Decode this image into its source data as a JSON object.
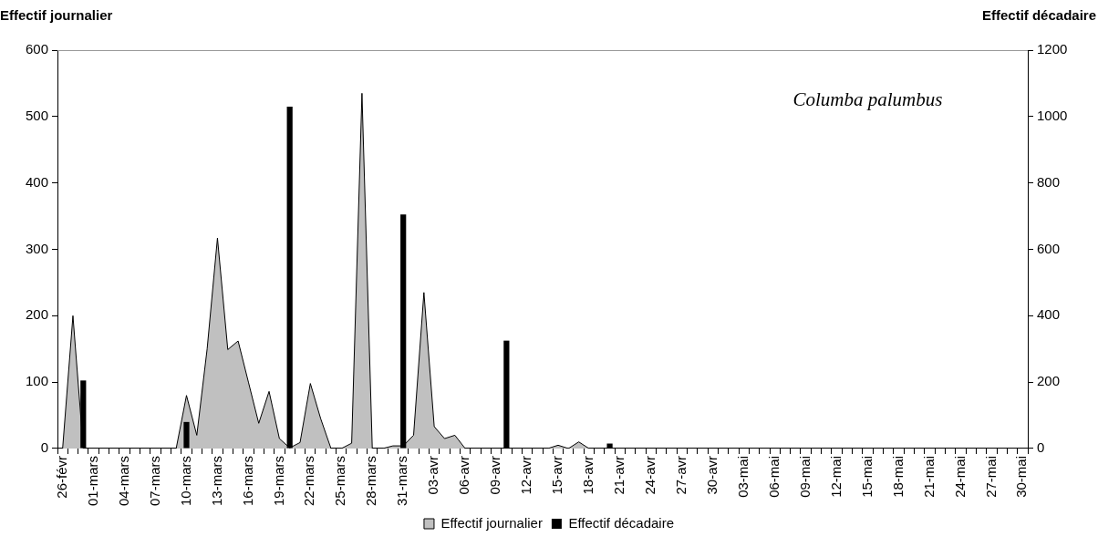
{
  "chart_data": {
    "type": "area",
    "ylabel": "Effectif journalier",
    "y2label": "Effectif décadaire",
    "annotations": [
      "Columba palumbus"
    ],
    "categories": [
      "26-févr",
      null,
      null,
      "01-mars",
      null,
      null,
      "04-mars",
      null,
      null,
      "07-mars",
      null,
      null,
      "10-mars",
      null,
      null,
      "13-mars",
      null,
      null,
      "16-mars",
      null,
      null,
      "19-mars",
      null,
      null,
      "22-mars",
      null,
      null,
      "25-mars",
      null,
      null,
      "28-mars",
      null,
      null,
      "31-mars",
      null,
      null,
      "03-avr",
      null,
      null,
      "06-avr",
      null,
      null,
      "09-avr",
      null,
      null,
      "12-avr",
      null,
      null,
      "15-avr",
      null,
      null,
      "18-avr",
      null,
      null,
      "21-avr",
      null,
      null,
      "24-avr",
      null,
      null,
      "27-avr",
      null,
      null,
      "30-avr",
      null,
      null,
      "03-mai",
      null,
      null,
      "06-mai",
      null,
      null,
      "09-mai",
      null,
      null,
      "12-mai",
      null,
      null,
      "15-mai",
      null,
      null,
      "18-mai",
      null,
      null,
      "21-mai",
      null,
      null,
      "24-mai",
      null,
      null,
      "27-mai",
      null,
      null,
      "30-mai"
    ],
    "series": [
      {
        "name": "Effectif journalier",
        "color": "#c0c0c0",
        "values": [
          0,
          200,
          0,
          0,
          0,
          0,
          0,
          0,
          0,
          0,
          0,
          0,
          80,
          20,
          150,
          317,
          149,
          162,
          100,
          38,
          86,
          15,
          1,
          9,
          98,
          45,
          0,
          0,
          8,
          535,
          0,
          0,
          4,
          4,
          20,
          235,
          33,
          15,
          20,
          0,
          0,
          0,
          0,
          0,
          0,
          0,
          0,
          0,
          5,
          0,
          10,
          0,
          0,
          0,
          0,
          0,
          0,
          0,
          0,
          0,
          0,
          0,
          0,
          0,
          0,
          0,
          0,
          0,
          0,
          0,
          0,
          0,
          0,
          0,
          0,
          0,
          0,
          0,
          0,
          0,
          0,
          0,
          0,
          0,
          0,
          0,
          0,
          0,
          0,
          0,
          0,
          0,
          0,
          0
        ]
      },
      {
        "name": "Effectif décadaire",
        "type": "bar",
        "axis": "y2",
        "color": "#000000",
        "values": [
          null,
          null,
          205,
          null,
          null,
          null,
          null,
          null,
          null,
          null,
          null,
          null,
          80,
          null,
          null,
          null,
          null,
          null,
          null,
          null,
          null,
          null,
          1030,
          null,
          null,
          null,
          null,
          null,
          null,
          null,
          null,
          null,
          null,
          705,
          null,
          null,
          null,
          null,
          null,
          null,
          null,
          null,
          null,
          325,
          null,
          null,
          null,
          null,
          null,
          null,
          null,
          null,
          null,
          15,
          null,
          null,
          null,
          null,
          null,
          null,
          null,
          null,
          null,
          0,
          null,
          null,
          null,
          null,
          null,
          null,
          null,
          null,
          null,
          0,
          null,
          null,
          null,
          null,
          null,
          null,
          null,
          null,
          null,
          0,
          null,
          null,
          null,
          null,
          null,
          null,
          null,
          null,
          null,
          0
        ]
      }
    ],
    "ylim": [
      0,
      600
    ],
    "yticks": [
      0,
      100,
      200,
      300,
      400,
      500,
      600
    ],
    "y2lim": [
      0,
      1200
    ],
    "y2ticks": [
      0,
      200,
      400,
      600,
      800,
      1000,
      1200
    ],
    "grid": false,
    "legend": "bottom"
  }
}
